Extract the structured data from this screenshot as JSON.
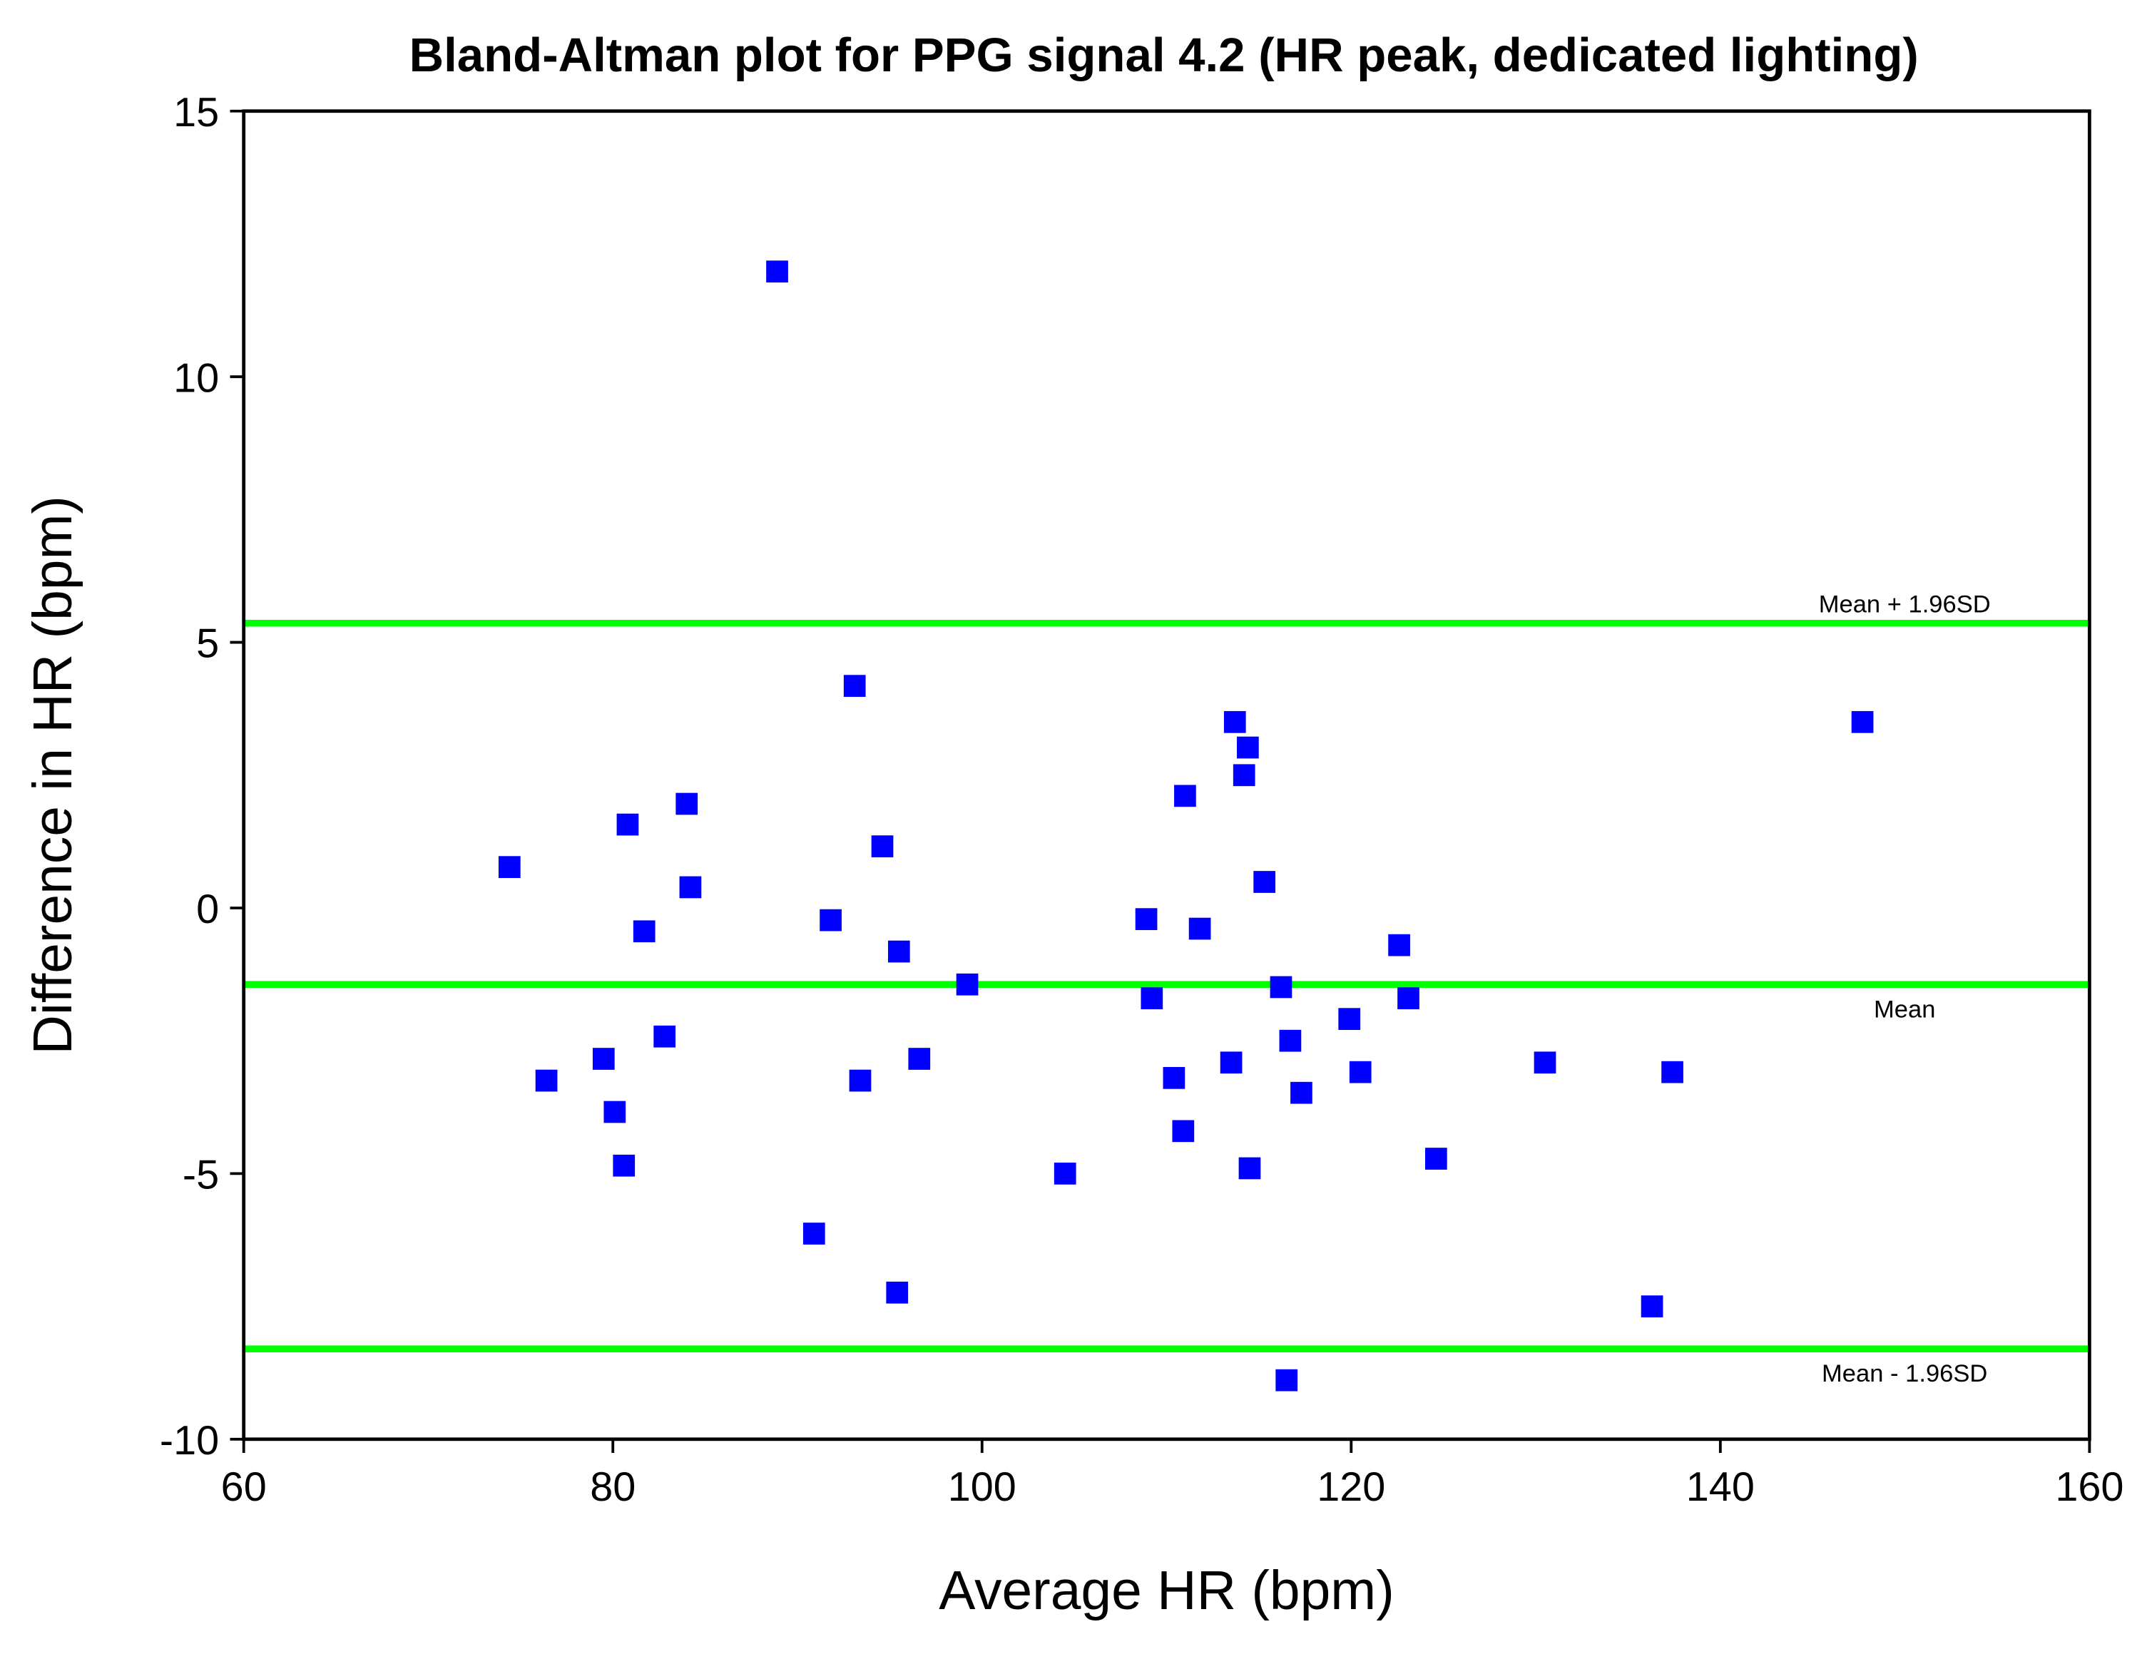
{
  "chart_data": {
    "type": "scatter",
    "title": "Bland-Altman plot for PPG signal 4.2 (HR peak, dedicated lighting)",
    "xlabel": "Average HR (bpm)",
    "ylabel": "Difference in HR (bpm)",
    "xlim": [
      60,
      160
    ],
    "ylim": [
      -10,
      15
    ],
    "xticks": [
      60,
      80,
      100,
      120,
      140,
      160
    ],
    "yticks": [
      -10,
      -5,
      0,
      5,
      10,
      15
    ],
    "grid": false,
    "marker_color": "#0000ff",
    "line_color": "#00ff00",
    "reference_lines": [
      {
        "name": "Mean + 1.96SD",
        "value": 5.36
      },
      {
        "name": "Mean",
        "value": -1.44
      },
      {
        "name": "Mean - 1.96SD",
        "value": -8.3
      }
    ],
    "points": [
      [
        74.4,
        0.77
      ],
      [
        76.4,
        -3.25
      ],
      [
        79.5,
        -2.84
      ],
      [
        80.1,
        -3.84
      ],
      [
        80.6,
        -4.85
      ],
      [
        80.8,
        1.57
      ],
      [
        81.7,
        -0.44
      ],
      [
        82.8,
        -2.42
      ],
      [
        84.0,
        1.96
      ],
      [
        84.2,
        0.39
      ],
      [
        88.9,
        11.98
      ],
      [
        90.9,
        -6.13
      ],
      [
        91.8,
        -0.23
      ],
      [
        93.1,
        4.18
      ],
      [
        93.4,
        -3.25
      ],
      [
        94.6,
        1.16
      ],
      [
        95.4,
        -7.24
      ],
      [
        95.5,
        -0.82
      ],
      [
        96.6,
        -2.84
      ],
      [
        99.2,
        -1.44
      ],
      [
        104.5,
        -5.0
      ],
      [
        108.9,
        -0.21
      ],
      [
        109.2,
        -1.7
      ],
      [
        110.4,
        -3.2
      ],
      [
        110.9,
        -4.2
      ],
      [
        111.0,
        2.11
      ],
      [
        111.8,
        -0.39
      ],
      [
        113.5,
        -2.91
      ],
      [
        113.7,
        3.5
      ],
      [
        114.2,
        2.5
      ],
      [
        114.4,
        3.02
      ],
      [
        114.5,
        -4.9
      ],
      [
        115.3,
        0.49
      ],
      [
        116.2,
        -1.49
      ],
      [
        116.5,
        -8.89
      ],
      [
        116.7,
        -2.5
      ],
      [
        117.3,
        -3.48
      ],
      [
        119.9,
        -2.09
      ],
      [
        120.5,
        -3.09
      ],
      [
        122.6,
        -0.7
      ],
      [
        123.1,
        -1.7
      ],
      [
        124.6,
        -4.72
      ],
      [
        130.5,
        -2.91
      ],
      [
        136.3,
        -7.5
      ],
      [
        137.4,
        -3.09
      ],
      [
        147.7,
        3.5
      ]
    ]
  }
}
